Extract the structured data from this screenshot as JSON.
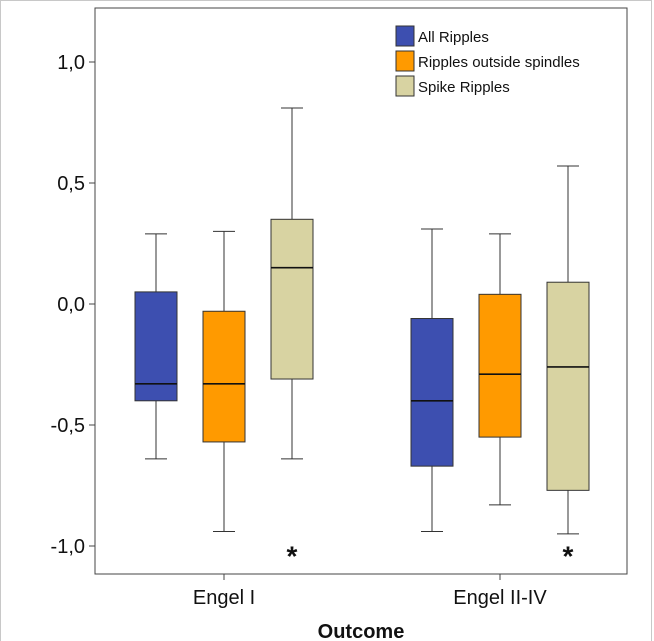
{
  "chart_data": {
    "type": "boxplot",
    "xlabel": "Outcome",
    "ylabel": "",
    "ylim": [
      -1.12,
      1.12
    ],
    "yticks": [
      {
        "value": 1.0,
        "label": "1,0"
      },
      {
        "value": 0.5,
        "label": "0,5"
      },
      {
        "value": 0.0,
        "label": "0,0"
      },
      {
        "value": -0.5,
        "label": "-0,5"
      },
      {
        "value": -1.0,
        "label": "-1,0"
      }
    ],
    "categories": [
      "Engel I",
      "Engel II-IV"
    ],
    "series": [
      {
        "name": "All Ripples",
        "color": "#3d4fb0",
        "boxes": [
          {
            "min": -0.64,
            "q1": -0.4,
            "median": -0.33,
            "q3": 0.05,
            "max": 0.29,
            "outliers": []
          },
          {
            "min": -0.94,
            "q1": -0.67,
            "median": -0.4,
            "q3": -0.06,
            "max": 0.31,
            "outliers": []
          }
        ]
      },
      {
        "name": "Ripples outside spindles",
        "color": "#ff9a00",
        "boxes": [
          {
            "min": -0.94,
            "q1": -0.57,
            "median": -0.33,
            "q3": -0.03,
            "max": 0.3,
            "outliers": []
          },
          {
            "min": -0.83,
            "q1": -0.55,
            "median": -0.29,
            "q3": 0.04,
            "max": 0.29,
            "outliers": []
          }
        ]
      },
      {
        "name": "Spike Ripples",
        "color": "#d8d3a2",
        "boxes": [
          {
            "min": -0.64,
            "q1": -0.31,
            "median": 0.15,
            "q3": 0.35,
            "max": 0.81,
            "outliers": [
              -1.01
            ]
          },
          {
            "min": -0.95,
            "q1": -0.77,
            "median": -0.26,
            "q3": 0.09,
            "max": 0.57,
            "outliers": [
              -1.01
            ]
          }
        ]
      }
    ],
    "extreme_marker": "*",
    "legend_position": "top-right",
    "grid": false
  }
}
